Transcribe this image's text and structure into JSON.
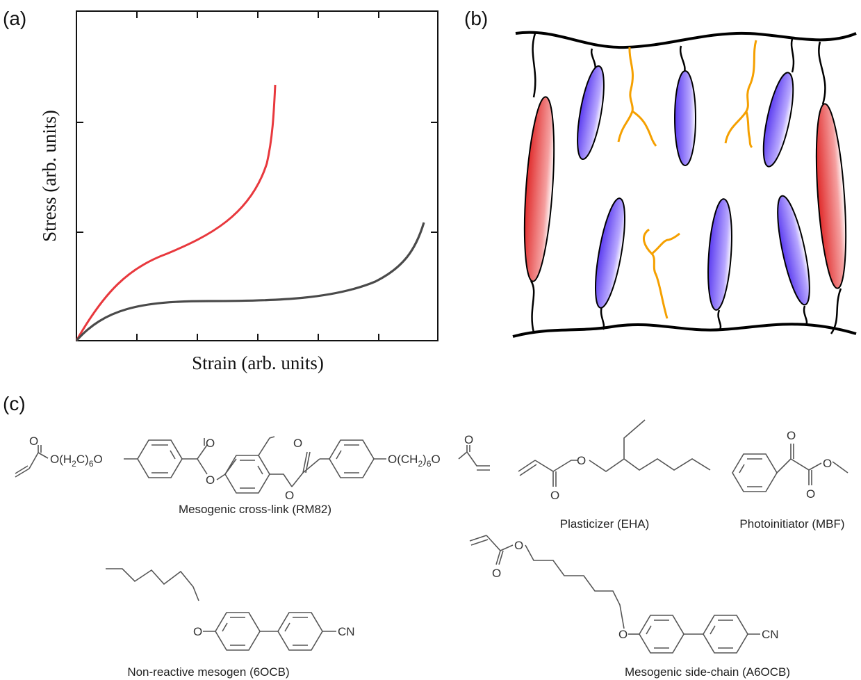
{
  "panels": {
    "a": {
      "label": "(a)"
    },
    "b": {
      "label": "(b)"
    },
    "c": {
      "label": "(c)"
    }
  },
  "plot": {
    "ylabel": "Stress (arb. units)",
    "xlabel": "Strain (arb. units)",
    "curve_colors": {
      "red": "#e8383d",
      "gray": "#4a4a4a"
    }
  },
  "diagram": {
    "mesogen_colors": {
      "blue": "#5b3cf0",
      "red": "#e03030",
      "chain": "#f5a000"
    }
  },
  "chem": {
    "rm82": {
      "name": "Mesogenic cross-link (RM82)",
      "o_left_linker": "O(H",
      "c2": "C)",
      "six": "6",
      "o_after": "O",
      "o_right_linker": "O(CH",
      "two": "2",
      "close": ")",
      "oxygen": "O"
    },
    "eha": {
      "name": "Plasticizer (EHA)",
      "oxygen": "O"
    },
    "mbf": {
      "name": "Photoinitiator (MBF)",
      "oxygen": "O"
    },
    "ocb6": {
      "name": "Non-reactive mesogen (6OCB)",
      "oxygen": "O",
      "cn": "CN"
    },
    "a6ocb": {
      "name": "Mesogenic side-chain (A6OCB)",
      "oxygen": "O",
      "cn": "CN"
    }
  }
}
